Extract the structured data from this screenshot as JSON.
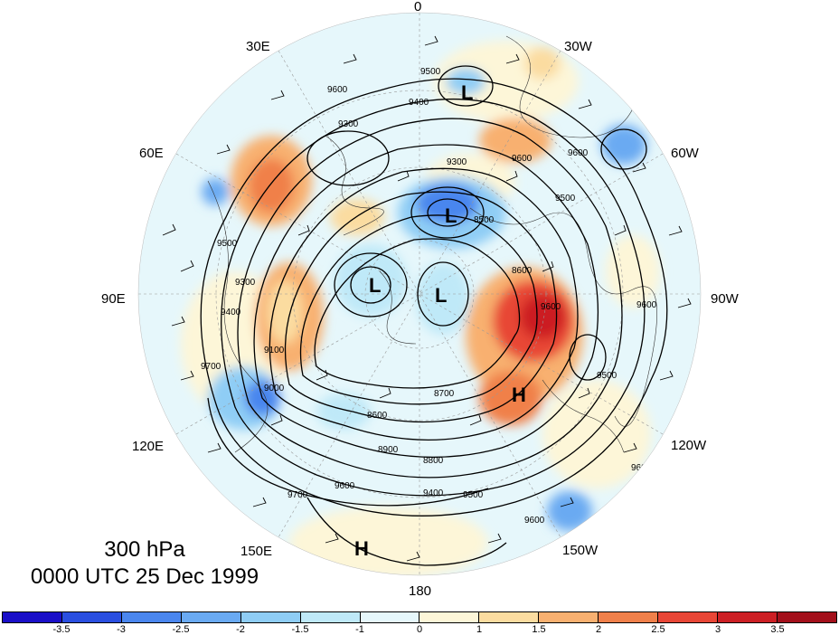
{
  "map": {
    "level_label": "300 hPa",
    "time_label": "0000 UTC 25 Dec 1999",
    "longitude_labels": [
      "0",
      "30W",
      "60W",
      "90W",
      "120W",
      "150W",
      "180",
      "150E",
      "120E",
      "90E",
      "60E",
      "30E"
    ],
    "pressure_centers": [
      {
        "type": "L",
        "label": "L"
      },
      {
        "type": "L",
        "label": "L"
      },
      {
        "type": "L",
        "label": "L"
      },
      {
        "type": "L",
        "label": "L"
      },
      {
        "type": "H",
        "label": "H"
      },
      {
        "type": "H",
        "label": "H"
      }
    ],
    "contour_labels": [
      "9500",
      "9600",
      "9400",
      "9300",
      "9600",
      "9600",
      "9500",
      "9300",
      "8500",
      "8600",
      "9600",
      "9500",
      "9300",
      "9400",
      "9100",
      "9000",
      "8800",
      "8900",
      "8600",
      "9400",
      "9500",
      "9600",
      "9700",
      "8700",
      "9600",
      "9600",
      "9500",
      "9600",
      "9700"
    ],
    "colorbar": {
      "tick_labels": [
        "-3.5",
        "-3",
        "-2.5",
        "-2",
        "-1.5",
        "-1",
        "0",
        "1",
        "1.5",
        "2",
        "2.5",
        "3",
        "3.5"
      ],
      "colors": [
        "#1a0fc8",
        "#2a4fe0",
        "#4a86ee",
        "#6aaaf2",
        "#8fcdf5",
        "#bfe9f8",
        "#e6f7fb",
        "#fdf6d8",
        "#fbdca0",
        "#f8b070",
        "#f0804a",
        "#e84636",
        "#cc1f24",
        "#a3101b"
      ]
    }
  }
}
